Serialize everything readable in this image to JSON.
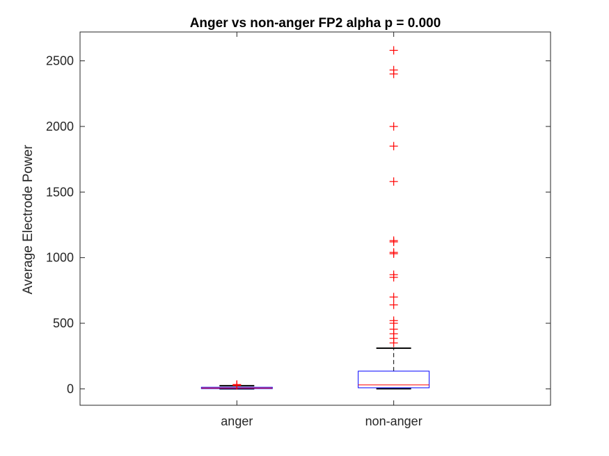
{
  "chart_data": {
    "type": "box",
    "title": "Anger vs non-anger FP2 alpha p = 0.000",
    "xlabel": "",
    "ylabel": "Average Electrode Power",
    "ylim": [
      -125,
      2720
    ],
    "yticks": [
      0,
      500,
      1000,
      1500,
      2000,
      2500
    ],
    "ytick_labels": [
      "0",
      "500",
      "1000",
      "1500",
      "2000",
      "2500"
    ],
    "grid": false,
    "categories": [
      "anger",
      "non-anger"
    ],
    "boxes": [
      {
        "name": "anger",
        "whisker_low": 0,
        "q1": 2,
        "median": 6,
        "q3": 12,
        "whisker_high": 24,
        "outliers": [
          26,
          30,
          33
        ]
      },
      {
        "name": "non-anger",
        "whisker_low": 1,
        "q1": 8,
        "median": 30,
        "q3": 135,
        "whisker_high": 310,
        "outliers": [
          350,
          385,
          420,
          455,
          500,
          520,
          640,
          700,
          850,
          870,
          1030,
          1040,
          1120,
          1130,
          1580,
          1850,
          2000,
          2400,
          2430,
          2580
        ]
      }
    ],
    "colors": {
      "box": "#0000ff",
      "median": "#ff0000",
      "whisker": "#000000",
      "outlier": "#ff0000",
      "axis": "#262626"
    }
  }
}
